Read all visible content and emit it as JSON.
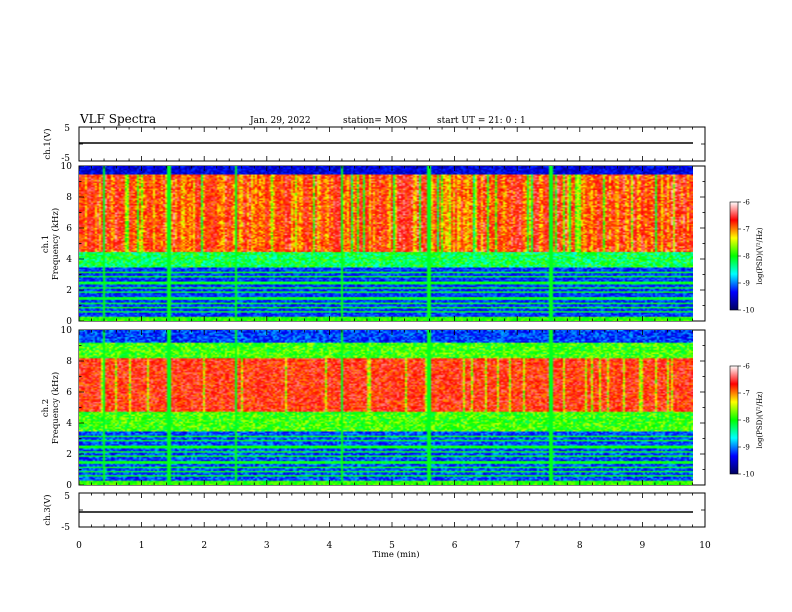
{
  "header": {
    "title": "VLF Spectra",
    "date": "Jan. 29, 2022",
    "station": "station= MOS",
    "start_ut": "start  UT =   21: 0  : 1"
  },
  "chart_data": [
    {
      "type": "line",
      "panel": "ch1-voltage",
      "ylabel": "ch.1(V)",
      "ylim": [
        -5,
        5
      ],
      "yticks": [
        "5",
        "-5"
      ],
      "x_range_min": [
        0,
        10
      ],
      "series": [
        {
          "values_v": [
            0,
            0
          ],
          "x_min": [
            0,
            9.85
          ]
        }
      ]
    },
    {
      "type": "heatmap",
      "panel": "ch1-spectrogram",
      "ylabel_line1": "ch.1",
      "ylabel_line2": "Frequency (kHz)",
      "ylim": [
        0,
        10
      ],
      "yticks": [
        "0",
        "2",
        "4",
        "6",
        "8",
        "10"
      ],
      "x_data_range_min": [
        0,
        9.85
      ],
      "colorbar": {
        "label": "log(PSD)(V²/Hz)",
        "range": [
          -10,
          -6
        ],
        "ticks": [
          "-10",
          "-9",
          "-8",
          "-7",
          "-6"
        ]
      }
    },
    {
      "type": "heatmap",
      "panel": "ch2-spectrogram",
      "ylabel_line1": "ch.2",
      "ylabel_line2": "Frequency (kHz)",
      "ylim": [
        0,
        10
      ],
      "yticks": [
        "0",
        "2",
        "4",
        "6",
        "8",
        "10"
      ],
      "x_data_range_min": [
        0,
        9.85
      ],
      "colorbar": {
        "label": "log(PSD)(V²/Hz)",
        "range": [
          -10,
          -6
        ],
        "ticks": [
          "-10",
          "-9",
          "-8",
          "-7",
          "-6"
        ]
      }
    },
    {
      "type": "line",
      "panel": "ch3-voltage",
      "ylabel": "ch.3(V)",
      "ylim": [
        -5,
        5
      ],
      "yticks": [
        "5",
        "-5"
      ],
      "series": [
        {
          "values_v": [
            0,
            0
          ],
          "x_min": [
            0,
            9.85
          ]
        }
      ]
    }
  ],
  "xaxis": {
    "label": "Time  (min)",
    "range": [
      0,
      10
    ],
    "ticks": [
      "0",
      "1",
      "2",
      "3",
      "4",
      "5",
      "6",
      "7",
      "8",
      "9",
      "10"
    ]
  },
  "colormap": [
    "#000060",
    "#0000ff",
    "#00ffff",
    "#00ff00",
    "#ffff00",
    "#ff0000",
    "#ffffff"
  ]
}
